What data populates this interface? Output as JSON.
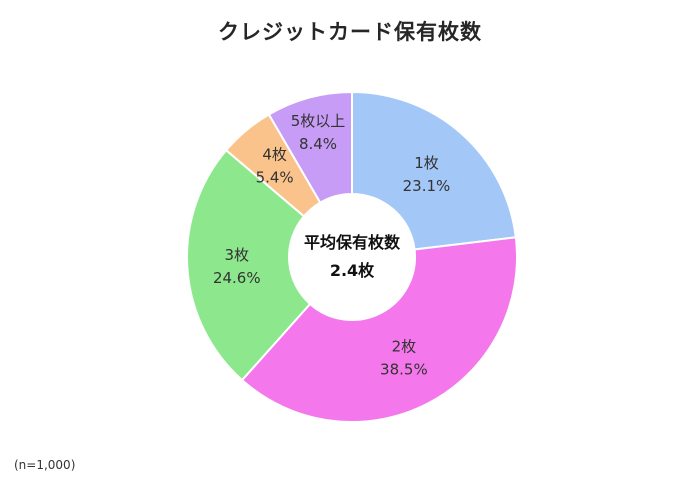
{
  "chart_data": {
    "type": "pie",
    "subtype": "donut",
    "title": "クレジットカード保有枚数",
    "categories": [
      "1枚",
      "2枚",
      "3枚",
      "4枚",
      "5枚以上"
    ],
    "values": [
      23.1,
      38.5,
      24.6,
      5.4,
      8.4
    ],
    "percent_labels": [
      "23.1%",
      "38.5%",
      "24.6%",
      "5.4%",
      "8.4%"
    ],
    "colors": [
      "#A3C7F7",
      "#F478EC",
      "#8DE88D",
      "#FAC38C",
      "#C79CF6"
    ],
    "slice_border_color": "#FFFFFF",
    "label_color": "#333333",
    "start_angle_deg": 0,
    "direction": "clockwise",
    "legend": "none",
    "center_label_line1": "平均保有枚数",
    "center_label_line2": "2.4枚",
    "note": "(n=1,000)",
    "label_radius_frac": [
      0.68,
      0.68,
      0.7,
      0.73,
      0.79
    ]
  }
}
